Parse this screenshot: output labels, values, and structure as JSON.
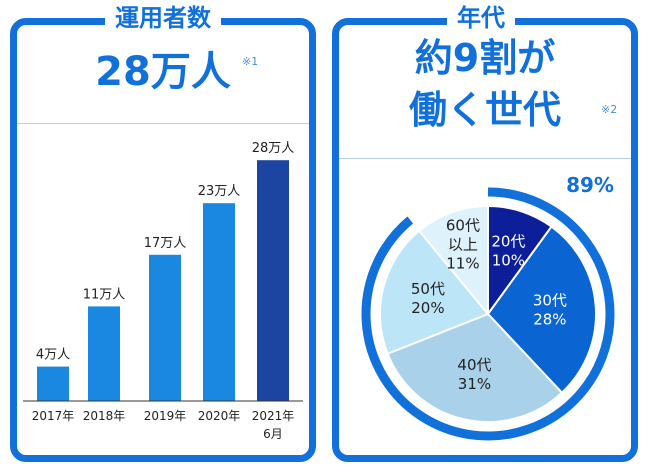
{
  "users": {
    "title": "運用者数",
    "headline": "28万人",
    "footnote": "※1"
  },
  "generation": {
    "title": "年代",
    "headline_line1": "約9割が",
    "headline_line2": "働く世代",
    "footnote": "※2",
    "highlight_label": "89%"
  },
  "chart_data": [
    {
      "type": "bar",
      "categories": [
        "2017年",
        "2018年",
        "2019年",
        "2020年",
        "2021年\n6月"
      ],
      "values": [
        4,
        11,
        17,
        23,
        28
      ],
      "value_labels": [
        "4万人",
        "11万人",
        "17万人",
        "23万人",
        "28万人"
      ],
      "colors": [
        "#1a88e0",
        "#1a88e0",
        "#1a88e0",
        "#1a88e0",
        "#1b45a1"
      ],
      "ylim": [
        0,
        30
      ],
      "grid": false
    },
    {
      "type": "pie",
      "slices": [
        {
          "label": "20代",
          "value": 10,
          "value_label": "10%",
          "color": "#0c1f99"
        },
        {
          "label": "30代",
          "value": 28,
          "value_label": "28%",
          "color": "#0a65d2"
        },
        {
          "label": "40代",
          "value": 31,
          "value_label": "31%",
          "color": "#a9d2ea"
        },
        {
          "label": "50代",
          "value": 20,
          "value_label": "20%",
          "color": "#bde5f8"
        },
        {
          "label": "60代以上",
          "value": 11,
          "value_label": "11%",
          "color": "#ddf2fb"
        }
      ],
      "highlight_arc_value": 89,
      "highlight_arc_color": "#1170d9"
    }
  ]
}
